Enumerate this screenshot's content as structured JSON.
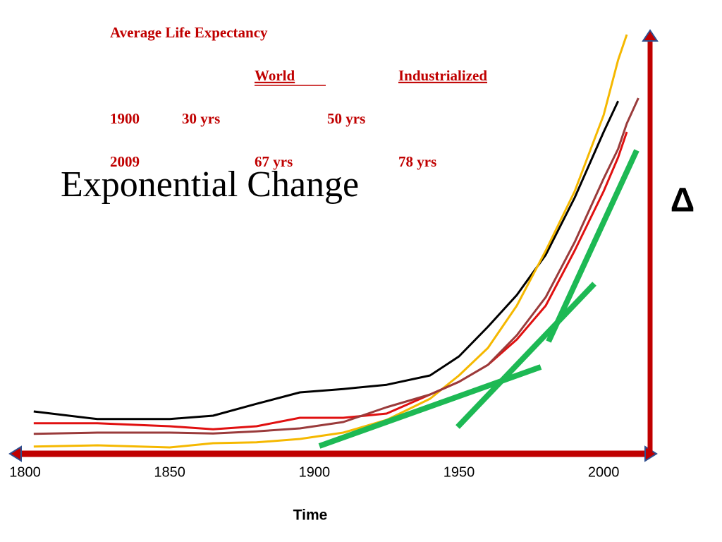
{
  "chart_data": {
    "type": "line",
    "title": "Exponential Change",
    "annotations": [
      "Average Life Expectancy",
      "World",
      "Industrialized",
      "1900",
      "30 yrs",
      "50 yrs",
      "2009",
      "67 yrs",
      "78 yrs"
    ],
    "x_label": "Time",
    "y_label": "Δ",
    "x": [
      1803,
      1825,
      1850,
      1865,
      1880,
      1895,
      1910,
      1925,
      1940,
      1950,
      1960,
      1970,
      1980,
      1990,
      2000,
      2005,
      2008,
      2012
    ],
    "series": [
      {
        "color": "#000000",
        "values": [
          10,
          8.2,
          8.2,
          9,
          11.8,
          14.5,
          15.3,
          16.3,
          18.5,
          23,
          30,
          37.5,
          47,
          60.5,
          76,
          83.3,
          null,
          null
        ]
      },
      {
        "color": "#f5b800",
        "values": [
          1.7,
          2,
          1.5,
          2.5,
          2.7,
          3.5,
          5,
          8,
          13,
          18.5,
          25,
          35,
          48,
          62,
          80,
          93,
          99,
          null
        ]
      },
      {
        "color": "#e01010",
        "values": [
          7.2,
          7.2,
          6.5,
          5.8,
          6.5,
          8.5,
          8.5,
          9.5,
          14,
          17,
          21,
          27,
          35,
          48,
          62,
          70,
          76,
          null
        ]
      },
      {
        "color": "#9a3b3b",
        "values": [
          4.7,
          5,
          5,
          4.8,
          5.3,
          6,
          7.5,
          11,
          14,
          17,
          21,
          28,
          37,
          50,
          65,
          72,
          78,
          84
        ]
      }
    ],
    "xlim": [
      1795,
      2018
    ],
    "ylim": [
      0,
      100
    ],
    "xticks": [
      1800,
      1850,
      1900,
      1950,
      2000
    ]
  }
}
